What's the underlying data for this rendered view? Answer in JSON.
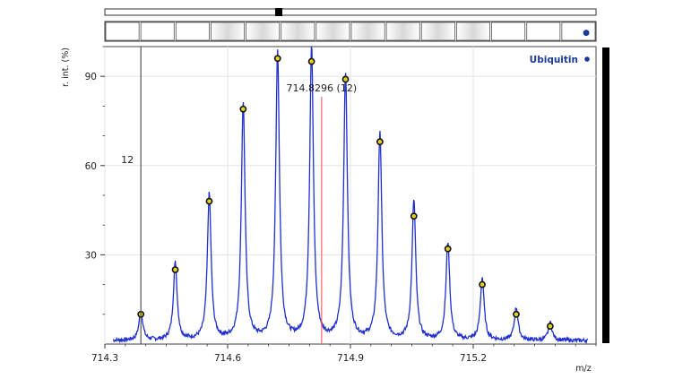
{
  "chart_data": {
    "type": "line",
    "xlabel": "m/z",
    "ylabel": "r. int. (%)",
    "xlim": [
      714.3,
      715.5
    ],
    "ylim": [
      0,
      100
    ],
    "x_ticks": [
      714.3,
      714.6,
      714.9,
      715.2
    ],
    "y_ticks": [
      30,
      60,
      90
    ],
    "legend": "Ubiquitin",
    "legend_placement": "top-right",
    "grid": true,
    "colors": {
      "spectrum": "#1f2fd0",
      "theoretical_marker": "#e6d21a",
      "red_line": "#ff6666",
      "gray_line": "#555555",
      "legend": "#1a3a9a"
    },
    "peaks": {
      "x": [
        714.388,
        714.472,
        714.555,
        714.638,
        714.722,
        714.805,
        714.888,
        714.972,
        715.055,
        715.138,
        715.222,
        715.305,
        715.388
      ],
      "y": [
        10,
        26,
        49,
        80,
        97,
        99,
        90,
        70,
        47,
        33,
        21,
        11,
        6
      ]
    },
    "theoretical": {
      "x": [
        714.388,
        714.472,
        714.555,
        714.638,
        714.722,
        714.805,
        714.888,
        714.972,
        715.055,
        715.138,
        715.222,
        715.305,
        715.388
      ],
      "y": [
        10,
        25,
        48,
        79,
        96,
        95,
        89,
        68,
        43,
        32,
        20,
        10,
        6
      ]
    },
    "annotations": {
      "centroid_label": "714.8296 (12)",
      "centroid_x": 714.8296,
      "charge_label": "12",
      "charge_line_x": 714.388
    }
  },
  "rt_strip": {
    "cells": 14,
    "indicator": "●"
  }
}
